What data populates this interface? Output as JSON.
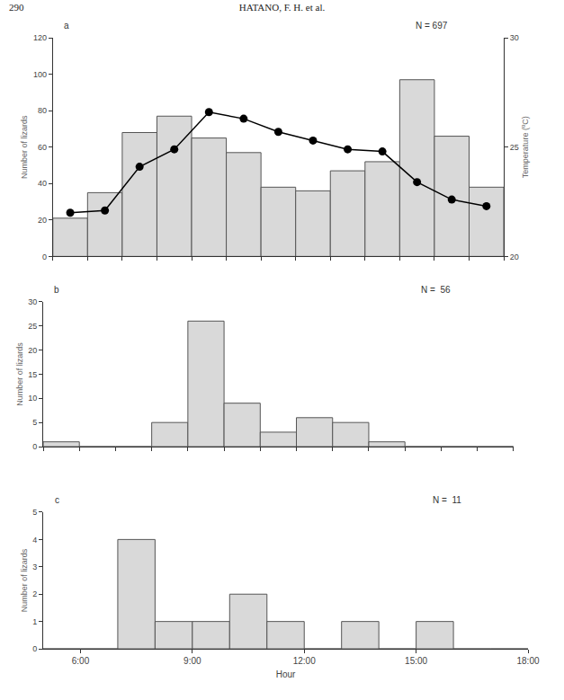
{
  "header": {
    "page": "290",
    "running_head": "HATANO, F. H. et al."
  },
  "chart_data": [
    {
      "type": "histogram",
      "label": "a",
      "annotation": "N = 697",
      "bins": [
        5,
        6,
        7,
        8,
        9,
        10,
        11,
        12,
        13,
        14,
        15,
        16,
        17,
        18
      ],
      "counts": [
        21,
        35,
        68,
        77,
        65,
        57,
        38,
        36,
        47,
        52,
        97,
        66,
        38
      ],
      "color": "#d9d9d9",
      "series": [
        {
          "type": "line",
          "axis": "y2",
          "color": "#000000",
          "marker": "circle",
          "x": [
            5.5,
            6.5,
            7.5,
            8.5,
            9.5,
            10.5,
            11.5,
            12.5,
            13.5,
            14.5,
            15.5,
            16.5,
            17.5
          ],
          "values": [
            22.0,
            22.1,
            24.1,
            24.9,
            26.6,
            26.3,
            25.7,
            25.3,
            24.9,
            24.8,
            23.4,
            22.6,
            22.3
          ]
        }
      ],
      "xlim": [
        5,
        18
      ],
      "xticks": [
        5,
        6,
        7,
        8,
        9,
        10,
        11,
        12,
        13,
        14,
        15,
        16,
        17,
        18
      ],
      "ylim": [
        0,
        120
      ],
      "yticks": [
        0,
        20,
        40,
        60,
        80,
        100,
        120
      ],
      "y2lim": [
        20,
        30
      ],
      "y2ticks": [
        20,
        25,
        30
      ],
      "y_label": "Number of lizards",
      "y2_label": "Temperature (ºC)",
      "tick_labels": "y"
    },
    {
      "type": "histogram",
      "label": "b",
      "annotation": "N =  56",
      "bins": [
        5,
        6,
        7,
        8,
        9,
        10,
        11,
        12,
        13,
        14,
        15,
        16,
        17,
        18
      ],
      "counts": [
        1,
        0,
        0,
        5,
        26,
        9,
        3,
        6,
        5,
        1,
        0,
        0,
        0
      ],
      "color": "#d9d9d9",
      "xlim": [
        5,
        18
      ],
      "xticks": [
        5,
        6,
        7,
        8,
        9,
        10,
        11,
        12,
        13,
        14,
        15,
        16,
        17,
        18
      ],
      "ylim": [
        0,
        30
      ],
      "yticks": [
        0,
        5,
        10,
        15,
        20,
        25,
        30
      ],
      "y_label": "Number of lizards",
      "tick_labels": "y"
    },
    {
      "type": "histogram",
      "label": "c",
      "annotation": "N =  11",
      "bins": [
        5,
        6,
        7,
        8,
        9,
        10,
        11,
        12,
        13,
        14,
        15,
        16,
        17,
        18
      ],
      "counts": [
        0,
        0,
        4,
        1,
        1,
        2,
        1,
        0,
        1,
        0,
        1,
        0,
        0
      ],
      "color": "#d9d9d9",
      "xlim": [
        5,
        18
      ],
      "xticks": [
        {
          "value": 6,
          "label": "6:00"
        },
        {
          "value": 9,
          "label": "9:00"
        },
        {
          "value": 12,
          "label": "12:00"
        },
        {
          "value": 15,
          "label": "15:00"
        },
        {
          "value": 18,
          "label": "18:00"
        }
      ],
      "ylim": [
        0,
        5
      ],
      "yticks": [
        0,
        1,
        2,
        3,
        4,
        5
      ],
      "x_label": "Hour",
      "y_label": "Number of lizards"
    }
  ]
}
